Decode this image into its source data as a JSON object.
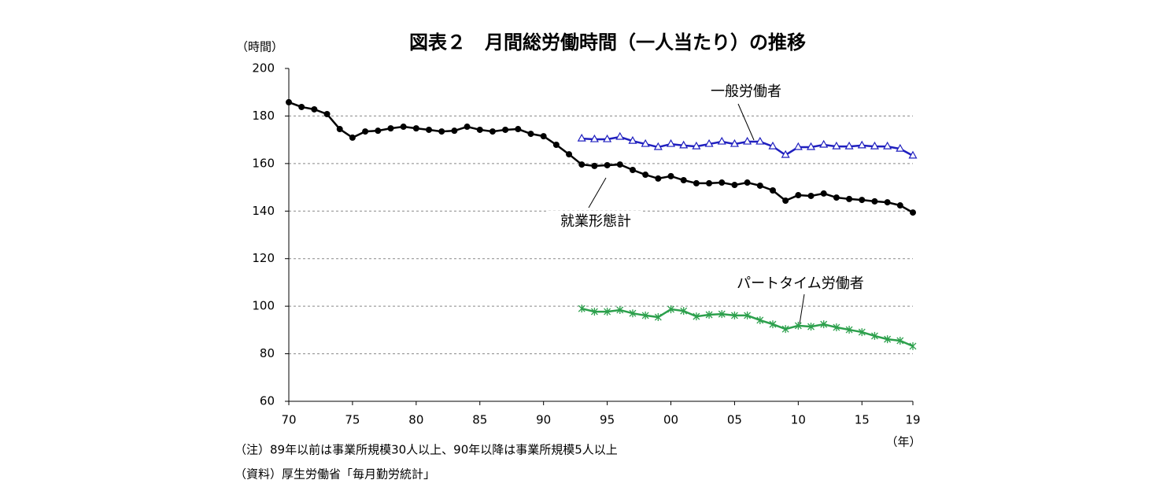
{
  "chart_data": {
    "type": "line",
    "title": "図表２　月間総労働時間（一人当たり）の推移",
    "y_label": "（時間）",
    "x_label": "（年）",
    "notes": [
      "（注）89年以前は事業所規模30人以上、90年以降は事業所規模5人以上",
      "（資料）厚生労働省「毎月勤労統計」"
    ],
    "x": [
      1970,
      1971,
      1972,
      1973,
      1974,
      1975,
      1976,
      1977,
      1978,
      1979,
      1980,
      1981,
      1982,
      1983,
      1984,
      1985,
      1986,
      1987,
      1988,
      1989,
      1990,
      1991,
      1992,
      1993,
      1994,
      1995,
      1996,
      1997,
      1998,
      1999,
      2000,
      2001,
      2002,
      2003,
      2004,
      2005,
      2006,
      2007,
      2008,
      2009,
      2010,
      2011,
      2012,
      2013,
      2014,
      2015,
      2016,
      2017,
      2018,
      2019
    ],
    "xlim": [
      1970,
      2019
    ],
    "xticks": [
      {
        "value": 1970,
        "label": "70"
      },
      {
        "value": 1975,
        "label": "75"
      },
      {
        "value": 1980,
        "label": "80"
      },
      {
        "value": 1985,
        "label": "85"
      },
      {
        "value": 1990,
        "label": "90"
      },
      {
        "value": 1995,
        "label": "95"
      },
      {
        "value": 2000,
        "label": "00"
      },
      {
        "value": 2005,
        "label": "05"
      },
      {
        "value": 2010,
        "label": "10"
      },
      {
        "value": 2015,
        "label": "15"
      },
      {
        "value": 2019,
        "label": "19"
      }
    ],
    "ylim": [
      60,
      200
    ],
    "yticks": [
      60,
      80,
      100,
      120,
      140,
      160,
      180,
      200
    ],
    "grid": true,
    "series": [
      {
        "name": "就業形態計",
        "color": "#000000",
        "marker": "circle",
        "values": [
          185.8,
          183.8,
          182.8,
          180.8,
          174.5,
          170.9,
          173.5,
          173.8,
          174.8,
          175.5,
          174.8,
          174.2,
          173.5,
          173.8,
          175.5,
          174.2,
          173.5,
          174.2,
          174.5,
          172.5,
          171.5,
          167.9,
          163.9,
          159.6,
          159.0,
          159.3,
          159.6,
          157.3,
          155.3,
          153.7,
          154.7,
          153.0,
          151.7,
          151.7,
          152.0,
          151.0,
          152.0,
          150.7,
          148.7,
          144.4,
          146.7,
          146.4,
          147.4,
          145.7,
          145.1,
          144.7,
          144.1,
          143.7,
          142.4,
          139.4
        ]
      },
      {
        "name": "一般労働者",
        "color": "#1f1fbf",
        "marker": "triangle",
        "values": [
          null,
          null,
          null,
          null,
          null,
          null,
          null,
          null,
          null,
          null,
          null,
          null,
          null,
          null,
          null,
          null,
          null,
          null,
          null,
          null,
          null,
          null,
          null,
          170.5,
          170.2,
          170.2,
          171.2,
          169.5,
          168.2,
          166.9,
          168.2,
          167.6,
          167.2,
          168.2,
          169.2,
          168.2,
          169.2,
          169.2,
          167.2,
          163.6,
          166.9,
          166.9,
          167.9,
          167.2,
          167.2,
          167.6,
          167.2,
          167.2,
          166.2,
          163.3
        ]
      },
      {
        "name": "パートタイム労働者",
        "color": "#2ca04c",
        "marker": "cross",
        "values": [
          null,
          null,
          null,
          null,
          null,
          null,
          null,
          null,
          null,
          null,
          null,
          null,
          null,
          null,
          null,
          null,
          null,
          null,
          null,
          null,
          null,
          null,
          null,
          99.0,
          97.7,
          97.7,
          98.4,
          97.0,
          96.1,
          95.4,
          98.7,
          98.0,
          95.7,
          96.4,
          96.7,
          96.1,
          96.1,
          94.1,
          92.4,
          90.4,
          91.8,
          91.4,
          92.4,
          91.1,
          90.1,
          89.1,
          87.5,
          86.1,
          85.5,
          83.2
        ]
      }
    ]
  }
}
